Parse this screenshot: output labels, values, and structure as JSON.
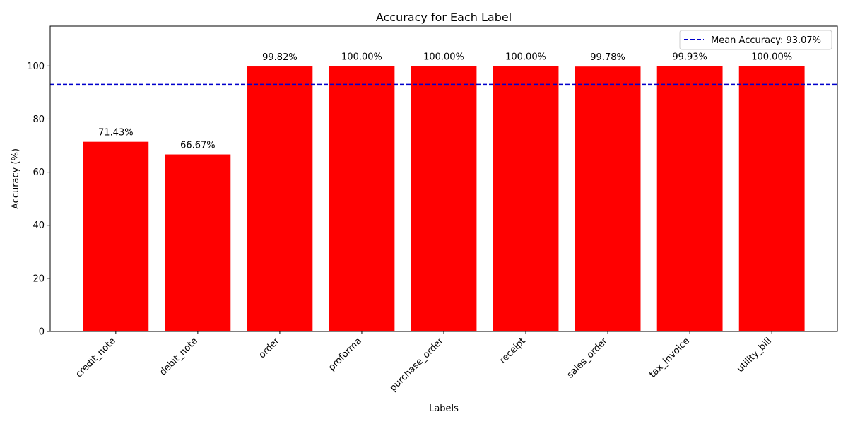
{
  "chart_data": {
    "type": "bar",
    "title": "Accuracy for Each Label",
    "xlabel": "Labels",
    "ylabel": "Accuracy (%)",
    "categories": [
      "credit_note",
      "debit_note",
      "order",
      "proforma",
      "purchase_order",
      "receipt",
      "sales_order",
      "tax_invoice",
      "utility_bill"
    ],
    "values": [
      71.43,
      66.67,
      99.82,
      100.0,
      100.0,
      100.0,
      99.78,
      99.93,
      100.0
    ],
    "value_labels": [
      "71.43%",
      "66.67%",
      "99.82%",
      "100.00%",
      "100.00%",
      "100.00%",
      "99.78%",
      "99.93%",
      "100.00%"
    ],
    "ylim": [
      0,
      115
    ],
    "yticks": [
      0,
      20,
      40,
      60,
      80,
      100
    ],
    "bar_color": "#ff0000",
    "mean_line": {
      "value": 93.07,
      "label": "Mean Accuracy: 93.07%",
      "color": "#0000cc",
      "style": "dashed"
    },
    "legend": {
      "position": "top-right"
    },
    "grid": false
  }
}
